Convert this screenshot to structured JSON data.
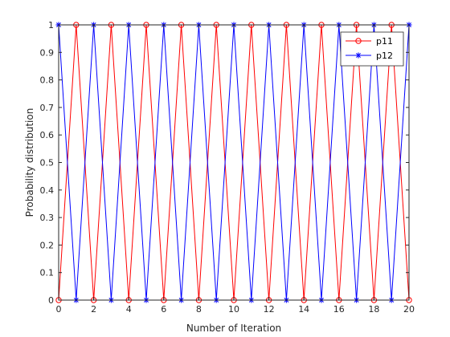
{
  "chart_data": {
    "type": "line",
    "xlabel": "Number of Iteration",
    "ylabel": "Probability distribution",
    "xlim": [
      0,
      20
    ],
    "ylim": [
      0,
      1
    ],
    "x_ticks": [
      "0",
      "2",
      "4",
      "6",
      "8",
      "10",
      "12",
      "14",
      "16",
      "18",
      "20"
    ],
    "y_ticks": [
      "0",
      "0.1",
      "0.2",
      "0.3",
      "0.4",
      "0.5",
      "0.6",
      "0.7",
      "0.8",
      "0.9",
      "1"
    ],
    "grid": false,
    "legend_position": "top-right",
    "x": [
      0,
      1,
      2,
      3,
      4,
      5,
      6,
      7,
      8,
      9,
      10,
      11,
      12,
      13,
      14,
      15,
      16,
      17,
      18,
      19,
      20
    ],
    "series": [
      {
        "name": "p11",
        "color": "#ff0000",
        "marker": "circle",
        "values": [
          0,
          1,
          0,
          1,
          0,
          1,
          0,
          1,
          0,
          1,
          0,
          1,
          0,
          1,
          0,
          1,
          0,
          1,
          0,
          1,
          0
        ]
      },
      {
        "name": "p12",
        "color": "#0000ff",
        "marker": "asterisk",
        "values": [
          1,
          0,
          1,
          0,
          1,
          0,
          1,
          0,
          1,
          0,
          1,
          0,
          1,
          0,
          1,
          0,
          1,
          0,
          1,
          0,
          1
        ]
      }
    ]
  }
}
